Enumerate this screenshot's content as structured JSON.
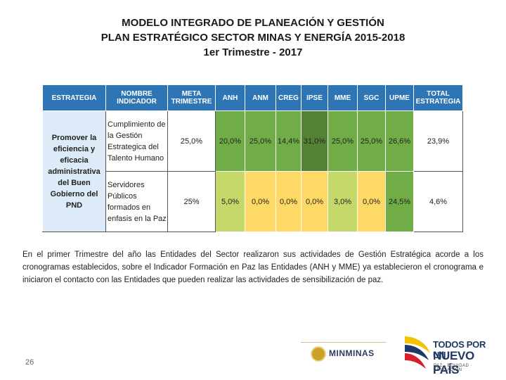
{
  "title": {
    "line1": "MODELO INTEGRADO DE PLANEACIÓN Y GESTIÓN",
    "line2": "PLAN ESTRATÉGICO SECTOR MINAS Y ENERGÍA  2015-2018",
    "line3": "1er Trimestre - 2017"
  },
  "table": {
    "headers": {
      "strategy": "ESTRATEGIA",
      "indicator": "NOMBRE INDICADOR",
      "meta": "META TRIMESTRE",
      "anh": "ANH",
      "anm": "ANM",
      "creg": "CREG",
      "ipse": "IPSE",
      "mme": "MME",
      "sgc": "SGC",
      "upme": "UPME",
      "total": "TOTAL ESTRATEGIA"
    },
    "strategy": "Promover la eficiencia y eficacia administrativa del Buen Gobierno del PND",
    "rows": [
      {
        "indicator": "Cumplimiento de la Gestión Estrategica del Talento Humano",
        "meta": "25,0%",
        "anh": "20,0%",
        "anm": "25,0%",
        "creg": "14,4%",
        "ipse": "31,0%",
        "mme": "25,0%",
        "sgc": "25,0%",
        "upme": "26,6%",
        "total": "23,9%"
      },
      {
        "indicator": "Servidores Públicos formados en enfasis en la Paz",
        "meta": "25%",
        "anh": "5,0%",
        "anm": "0,0%",
        "creg": "0,0%",
        "ipse": "0,0%",
        "mme": "3,0%",
        "sgc": "0,0%",
        "upme": "24,5%",
        "total": "4,6%"
      }
    ]
  },
  "body_text": "En el primer Trimestre del año las Entidades del Sector realizaron sus actividades de Gestión Estratégica acorde a los cronogramas establecidos, sobre el Indicador Formación en Paz las Entidades (ANH y MME) ya establecieron el cronograma e iniciaron el contacto con las Entidades que pueden realizar las actividades de sensibilización de paz.",
  "page_number": "26",
  "logos": {
    "minminas": "MINMINAS",
    "country_line1": "TODOS POR UN",
    "country_line2": "NUEVO PAÍS",
    "country_line3": "PAZ · EQUIDAD · EDUCACIÓN"
  },
  "colors": {
    "header_blue": "#2e75b6",
    "strategy_bg": "#ddeaf7",
    "green_dark": "#548235",
    "green_mid": "#70ad47",
    "green_light": "#a9d18e",
    "yellow_light": "#ffe699",
    "yellow_mid": "#ffd966"
  }
}
